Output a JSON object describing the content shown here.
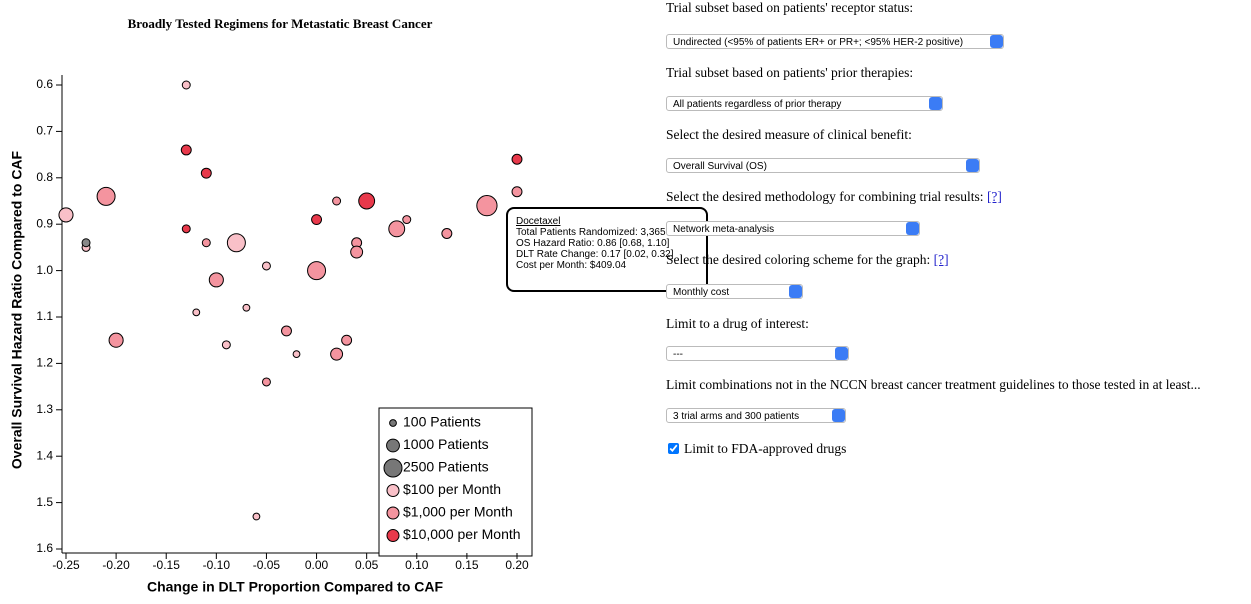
{
  "chart_data": {
    "type": "scatter",
    "title": "Broadly Tested Regimens for Metastatic Breast Cancer",
    "x_label": "Change in DLT Proportion Compared to CAF",
    "y_label": "Overall Survival Hazard Ratio Compared to CAF",
    "x": [
      -0.25,
      -0.23,
      -0.21,
      -0.23,
      -0.2,
      -0.13,
      -0.13,
      -0.11,
      -0.13,
      -0.11,
      -0.08,
      -0.1,
      -0.12,
      -0.09,
      -0.07,
      -0.05,
      -0.03,
      -0.02,
      -0.05,
      -0.06,
      0.0,
      0.0,
      0.02,
      0.05,
      0.04,
      0.04,
      0.03,
      0.02,
      0.08,
      0.09,
      0.13,
      0.17,
      0.2,
      0.2
    ],
    "y": [
      0.88,
      0.95,
      0.84,
      0.94,
      1.15,
      0.6,
      0.74,
      0.79,
      0.91,
      0.94,
      0.94,
      1.02,
      1.09,
      1.16,
      1.08,
      0.99,
      1.13,
      1.18,
      1.24,
      1.53,
      1.0,
      0.89,
      0.85,
      0.85,
      0.94,
      0.96,
      1.15,
      1.18,
      0.91,
      0.89,
      0.92,
      0.86,
      0.83,
      0.76
    ],
    "sizes": [
      1300,
      200,
      2500,
      200,
      1300,
      200,
      450,
      450,
      200,
      200,
      2500,
      1300,
      100,
      200,
      100,
      200,
      450,
      100,
      200,
      100,
      2500,
      450,
      200,
      1800,
      450,
      800,
      450,
      800,
      1800,
      200,
      450,
      3365,
      450,
      450
    ],
    "colors": [
      "#f9c0c8",
      "#f9c0c8",
      "#f4949f",
      "#888888",
      "#f4949f",
      "#f9c0c8",
      "#e8394b",
      "#e8394b",
      "#e8394b",
      "#f4949f",
      "#f9c0c8",
      "#f4949f",
      "#f9c0c8",
      "#f9c0c8",
      "#f9c0c8",
      "#f9c0c8",
      "#f4949f",
      "#f9c0c8",
      "#f4949f",
      "#f9c0c8",
      "#f4949f",
      "#e8394b",
      "#f4949f",
      "#e8394b",
      "#f4949f",
      "#f4949f",
      "#f4949f",
      "#f4949f",
      "#f4949f",
      "#f4949f",
      "#f4949f",
      "#f4949f",
      "#f4949f",
      "#e8394b"
    ],
    "xlim": [
      -0.25,
      0.2
    ],
    "xticks": [
      -0.25,
      {
        "value": -0.2,
        "label": "-0.20"
      },
      -0.15,
      {
        "value": -0.1,
        "label": "-0.10"
      },
      -0.05,
      {
        "value": 0,
        "label": "0.00"
      },
      0.05,
      {
        "value": 0.1,
        "label": "0.10"
      },
      0.15,
      {
        "value": 0.2,
        "label": "0.20"
      }
    ],
    "ylim": [
      0.6,
      1.6
    ],
    "y_inverted": true,
    "yticks": [
      0.6,
      0.7,
      0.8,
      0.9,
      {
        "value": 1,
        "label": "1.0"
      },
      1.1,
      1.2,
      1.3,
      1.4,
      1.5,
      1.6
    ],
    "size_legend": [
      {
        "label": "100 Patients",
        "size": 100
      },
      {
        "label": "1000 Patients",
        "size": 1000
      },
      {
        "label": "2500 Patients",
        "size": 2500
      }
    ],
    "color_legend": [
      {
        "label": "$100 per Month",
        "color": "#f9c0c8"
      },
      {
        "label": "$1,000 per Month",
        "color": "#f4949f"
      },
      {
        "label": "$10,000 per Month",
        "color": "#e8394b"
      }
    ],
    "tooltip": {
      "title": "Docetaxel",
      "lines": [
        "Total Patients Randomized: 3,365",
        "OS Hazard Ratio: 0.86 [0.68, 1.10]",
        "DLT Rate Change: 0.17 [0.02, 0.32]",
        "Cost per Month: $409.04"
      ]
    }
  },
  "form": {
    "fields": [
      {
        "label": "Trial subset based on patients' receptor status:",
        "value": "Undirected (<95% of patients ER+ or PR+; <95% HER-2 positive)"
      },
      {
        "label": "Trial subset based on patients' prior therapies:",
        "value": "All patients regardless of prior therapy"
      },
      {
        "label": "Select the desired measure of clinical benefit:",
        "value": "Overall Survival (OS)"
      },
      {
        "label": "Select the desired methodology for combining trial results:",
        "help": "[?]",
        "value": "Network meta-analysis"
      },
      {
        "label": "Select the desired coloring scheme for the graph:",
        "help": "[?]",
        "value": "Monthly cost"
      },
      {
        "label": "Limit to a drug of interest:",
        "value": "---"
      },
      {
        "label": "Limit combinations not in the NCCN breast cancer treatment guidelines to those tested in at least...",
        "value": "3 trial arms and 300 patients"
      }
    ],
    "checkbox": {
      "label": "Limit to FDA-approved drugs",
      "checked": true
    }
  }
}
